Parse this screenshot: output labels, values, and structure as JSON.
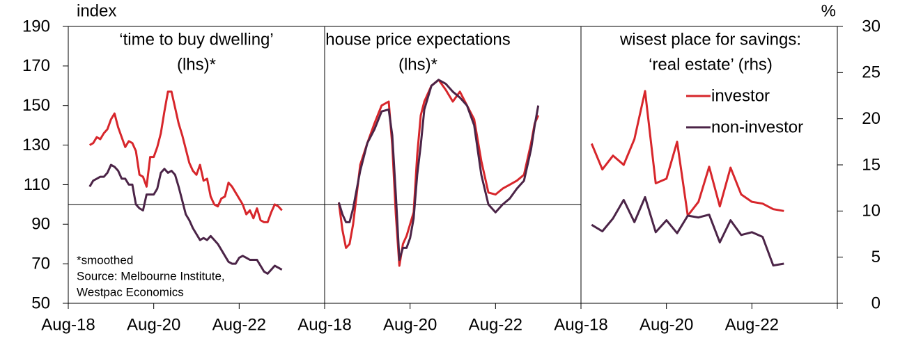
{
  "chart_data": [
    {
      "type": "line",
      "title": [
        "‘time to buy dwelling’",
        "(lhs)*"
      ],
      "ylabel": "index",
      "annotations": [
        "*smoothed",
        "Source: Melbourne Institute,",
        "Westpac Economics"
      ],
      "ylim": [
        50,
        190
      ],
      "yticks": [
        50,
        70,
        90,
        110,
        130,
        150,
        170,
        190
      ],
      "hline": 100,
      "xlim": [
        "2018-08",
        "2024-08"
      ],
      "xticks": [
        {
          "value": "2018-08",
          "label": "Aug-18"
        },
        {
          "value": "2020-08",
          "label": "Aug-20"
        },
        {
          "value": "2022-08",
          "label": "Aug-22"
        }
      ],
      "x": [
        "2019-02",
        "2019-03",
        "2019-04",
        "2019-05",
        "2019-06",
        "2019-07",
        "2019-08",
        "2019-09",
        "2019-10",
        "2019-11",
        "2019-12",
        "2020-01",
        "2020-02",
        "2020-03",
        "2020-04",
        "2020-05",
        "2020-06",
        "2020-07",
        "2020-08",
        "2020-09",
        "2020-10",
        "2020-11",
        "2020-12",
        "2021-01",
        "2021-02",
        "2021-03",
        "2021-04",
        "2021-05",
        "2021-06",
        "2021-07",
        "2021-08",
        "2021-09",
        "2021-10",
        "2021-11",
        "2021-12",
        "2022-01",
        "2022-02",
        "2022-03",
        "2022-04",
        "2022-05",
        "2022-06",
        "2022-07",
        "2022-08",
        "2022-09",
        "2022-10",
        "2022-11",
        "2022-12",
        "2023-01",
        "2023-02",
        "2023-03",
        "2023-04",
        "2023-05",
        "2023-06",
        "2023-07",
        "2023-08"
      ],
      "series": [
        {
          "color": "#d7262b",
          "values": [
            130,
            131,
            134,
            133,
            136,
            138,
            143,
            146,
            139,
            134,
            129,
            132,
            131,
            127,
            115,
            114,
            109,
            124,
            124,
            129,
            136,
            147,
            157,
            157,
            149,
            141,
            135,
            128,
            121,
            117,
            115,
            120,
            112,
            113,
            104,
            100,
            99,
            103,
            104,
            111,
            109,
            106,
            103,
            100,
            95,
            97,
            93,
            98,
            92,
            91,
            91,
            96,
            100,
            99,
            97
          ]
        },
        {
          "color": "#4b2447",
          "values": [
            109,
            112,
            113,
            114,
            114,
            116,
            120,
            119,
            117,
            113,
            113,
            110,
            110,
            100,
            98,
            97,
            105,
            105,
            105,
            108,
            116,
            118,
            116,
            117,
            115,
            109,
            102,
            95,
            92,
            88,
            85,
            82,
            83,
            82,
            84,
            82,
            80,
            77,
            74,
            71,
            70,
            70,
            73,
            74,
            73,
            72,
            72,
            72,
            69,
            66,
            65,
            67,
            69,
            68,
            67
          ]
        }
      ]
    },
    {
      "type": "line",
      "title": [
        "house price expectations",
        "(lhs)*"
      ],
      "ylim": [
        50,
        190
      ],
      "hline": 100,
      "xlim": [
        "2018-08",
        "2024-08"
      ],
      "xticks": [
        {
          "value": "2018-08",
          "label": "Aug-18"
        },
        {
          "value": "2020-08",
          "label": "Aug-20"
        },
        {
          "value": "2022-08",
          "label": "Aug-22"
        }
      ],
      "x": [
        "2018-12",
        "2019-01",
        "2019-02",
        "2019-03",
        "2019-04",
        "2019-06",
        "2019-08",
        "2019-10",
        "2019-12",
        "2020-02",
        "2020-03",
        "2020-04",
        "2020-05",
        "2020-06",
        "2020-07",
        "2020-08",
        "2020-09",
        "2020-10",
        "2020-11",
        "2020-12",
        "2021-02",
        "2021-04",
        "2021-06",
        "2021-08",
        "2021-10",
        "2021-12",
        "2022-02",
        "2022-04",
        "2022-06",
        "2022-08",
        "2022-10",
        "2022-12",
        "2023-02",
        "2023-04",
        "2023-06",
        "2023-07",
        "2023-08"
      ],
      "series": [
        {
          "color": "#d7262b",
          "values": [
            101,
            87,
            78,
            80,
            90,
            120,
            131,
            141,
            150,
            152,
            130,
            95,
            69,
            80,
            84,
            90,
            96,
            125,
            145,
            152,
            160,
            163,
            158,
            152,
            157,
            150,
            143,
            122,
            106,
            105,
            108,
            110,
            112,
            115,
            131,
            141,
            145
          ]
        },
        {
          "color": "#4b2447",
          "values": [
            101,
            95,
            91,
            91,
            98,
            117,
            131,
            138,
            147,
            148,
            135,
            105,
            72,
            78,
            78,
            83,
            93,
            115,
            130,
            148,
            160,
            163,
            161,
            157,
            154,
            150,
            140,
            115,
            100,
            96,
            100,
            103,
            108,
            112,
            128,
            140,
            150
          ]
        }
      ]
    },
    {
      "type": "line",
      "title": [
        "wisest place for savings:",
        "‘real estate’ (rhs)"
      ],
      "y2label": "%",
      "y2lim": [
        0,
        30
      ],
      "y2ticks": [
        0,
        5,
        10,
        15,
        20,
        25,
        30
      ],
      "xlim": [
        "2018-08",
        "2024-08"
      ],
      "xticks": [
        {
          "value": "2018-08",
          "label": "Aug-18"
        },
        {
          "value": "2020-08",
          "label": "Aug-20"
        },
        {
          "value": "2022-08",
          "label": "Aug-22"
        }
      ],
      "legend": "upper right",
      "x": [
        "2018-11",
        "2019-02",
        "2019-05",
        "2019-08",
        "2019-11",
        "2020-02",
        "2020-05",
        "2020-08",
        "2020-11",
        "2021-02",
        "2021-05",
        "2021-08",
        "2021-11",
        "2022-02",
        "2022-05",
        "2022-08",
        "2022-11",
        "2023-02",
        "2023-05"
      ],
      "series": [
        {
          "name": "investor",
          "color": "#d7262b",
          "axis": "y2",
          "values": [
            17.3,
            14.5,
            16,
            15,
            17.8,
            23,
            13,
            13.5,
            17.5,
            9.5,
            11,
            14.8,
            10.5,
            14.7,
            11.8,
            11,
            10.8,
            10.2,
            10
          ]
        },
        {
          "name": "non-investor",
          "color": "#4b2447",
          "axis": "y2",
          "values": [
            8.5,
            7.8,
            9.2,
            11.2,
            8.8,
            11.5,
            7.7,
            9,
            7.6,
            9.5,
            9.3,
            9.6,
            6.6,
            9,
            7.4,
            7.7,
            7.2,
            4.1,
            4.3
          ]
        }
      ]
    }
  ]
}
